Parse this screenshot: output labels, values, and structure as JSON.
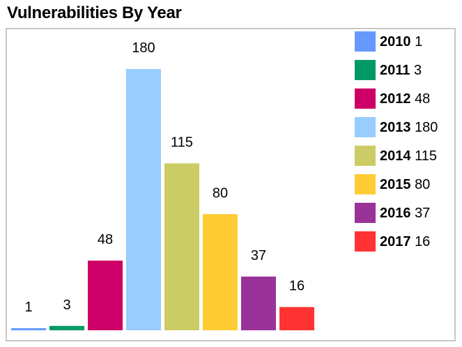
{
  "title": "Vulnerabilities By Year",
  "chart_data": {
    "type": "bar",
    "categories": [
      "2010",
      "2011",
      "2012",
      "2013",
      "2014",
      "2015",
      "2016",
      "2017"
    ],
    "values": [
      1,
      3,
      48,
      180,
      115,
      80,
      37,
      16
    ],
    "colors": [
      "#6699ff",
      "#009966",
      "#cc0066",
      "#99ccff",
      "#cccc66",
      "#ffcc33",
      "#993399",
      "#ff3333"
    ],
    "data_labels": [
      "1",
      "3",
      "48",
      "180",
      "115",
      "80",
      "37",
      "16"
    ],
    "ylim": [
      0,
      180
    ],
    "grid": false,
    "legend_position": "right"
  },
  "legend": {
    "items": [
      {
        "year": "2010",
        "value": "1"
      },
      {
        "year": "2011",
        "value": "3"
      },
      {
        "year": "2012",
        "value": "48"
      },
      {
        "year": "2013",
        "value": "180"
      },
      {
        "year": "2014",
        "value": "115"
      },
      {
        "year": "2015",
        "value": "80"
      },
      {
        "year": "2016",
        "value": "37"
      },
      {
        "year": "2017",
        "value": "16"
      }
    ]
  }
}
